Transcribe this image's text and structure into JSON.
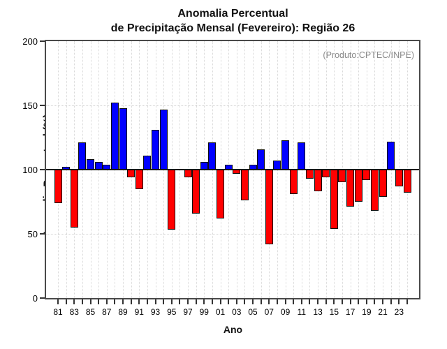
{
  "title": {
    "line1": "Anomalia Percentual",
    "line2": "de Precipitação Mensal (Fevereiro): Região 26"
  },
  "annotation": "(Produto:CPTEC/INPE)",
  "colors": {
    "bar_positive": "#0000ff",
    "bar_negative": "#ff0000",
    "bar_border": "#101010",
    "baseline": "#1c1c1c",
    "frame": "#4a4a4a",
    "grid": "#d9d9d9",
    "annotation_text": "#8a8a8a"
  },
  "chart_data": {
    "type": "bar",
    "title": "Anomalia Percentual de Precipitação Mensal (Fevereiro): Região 26",
    "xlabel": "Ano",
    "ylabel": "Anomalia Percentual (%)",
    "ylim": [
      0,
      200
    ],
    "yticks": [
      0,
      50,
      100,
      150,
      200
    ],
    "baseline": 100,
    "grid_horizontal": [
      50,
      150
    ],
    "grid_vertical": "every-year",
    "legend": null,
    "color_rule": "value >= 100 blue (positive), value < 100 red (negative)",
    "categories": [
      "81",
      "82",
      "83",
      "84",
      "85",
      "86",
      "87",
      "88",
      "89",
      "90",
      "91",
      "92",
      "93",
      "94",
      "95",
      "96",
      "97",
      "98",
      "99",
      "00",
      "01",
      "02",
      "03",
      "04",
      "05",
      "06",
      "07",
      "08",
      "09",
      "10",
      "11",
      "12",
      "13",
      "14",
      "15",
      "16",
      "17",
      "18",
      "19",
      "20",
      "21",
      "22",
      "23",
      "24"
    ],
    "labeled_ticks": [
      "81",
      "83",
      "85",
      "87",
      "89",
      "91",
      "93",
      "95",
      "97",
      "99",
      "01",
      "03",
      "05",
      "07",
      "09",
      "11",
      "13",
      "15",
      "17",
      "19",
      "21",
      "23"
    ],
    "values": [
      74,
      102,
      55,
      121,
      108,
      106,
      104,
      152,
      148,
      94,
      85,
      111,
      131,
      147,
      53,
      100.5,
      94,
      66,
      106,
      121,
      62,
      104,
      97,
      76,
      104,
      116,
      42,
      107,
      123,
      81,
      121,
      93,
      83,
      94,
      54,
      90,
      71,
      75,
      92,
      68,
      79,
      122,
      87,
      82
    ]
  }
}
